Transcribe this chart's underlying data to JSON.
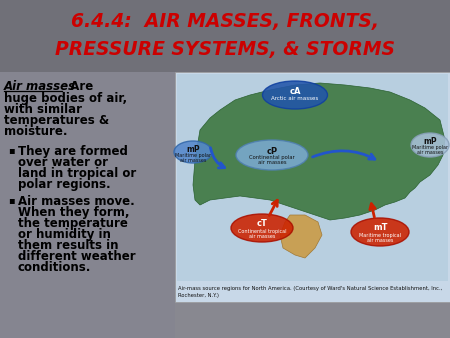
{
  "title_line1": "6.4.4:  AIR MASSES, FRONTS,",
  "title_line2": "PRESSURE SYSTEMS, & STORMS",
  "title_color": "#cc0000",
  "title_fontsize": 13.5,
  "bg_color": "#888890",
  "heading_text": "Air masses",
  "heading_suffix": "  Are",
  "body_lines": [
    "huge bodies of air,",
    "with similar",
    "temperatures &",
    "moisture."
  ],
  "bullet1_lines": [
    "They are formed",
    "over water or",
    "land in tropical or",
    "polar regions."
  ],
  "bullet2_lines": [
    "Air masses move.",
    "When they form,",
    "the temperature",
    "or humidity in",
    "them results in",
    "different weather",
    "conditions."
  ],
  "caption": "Air-mass source regions for North America. (Courtesy of Ward's Natural Science Establishment, Inc.,",
  "caption2": "Rochester, N.Y.)"
}
